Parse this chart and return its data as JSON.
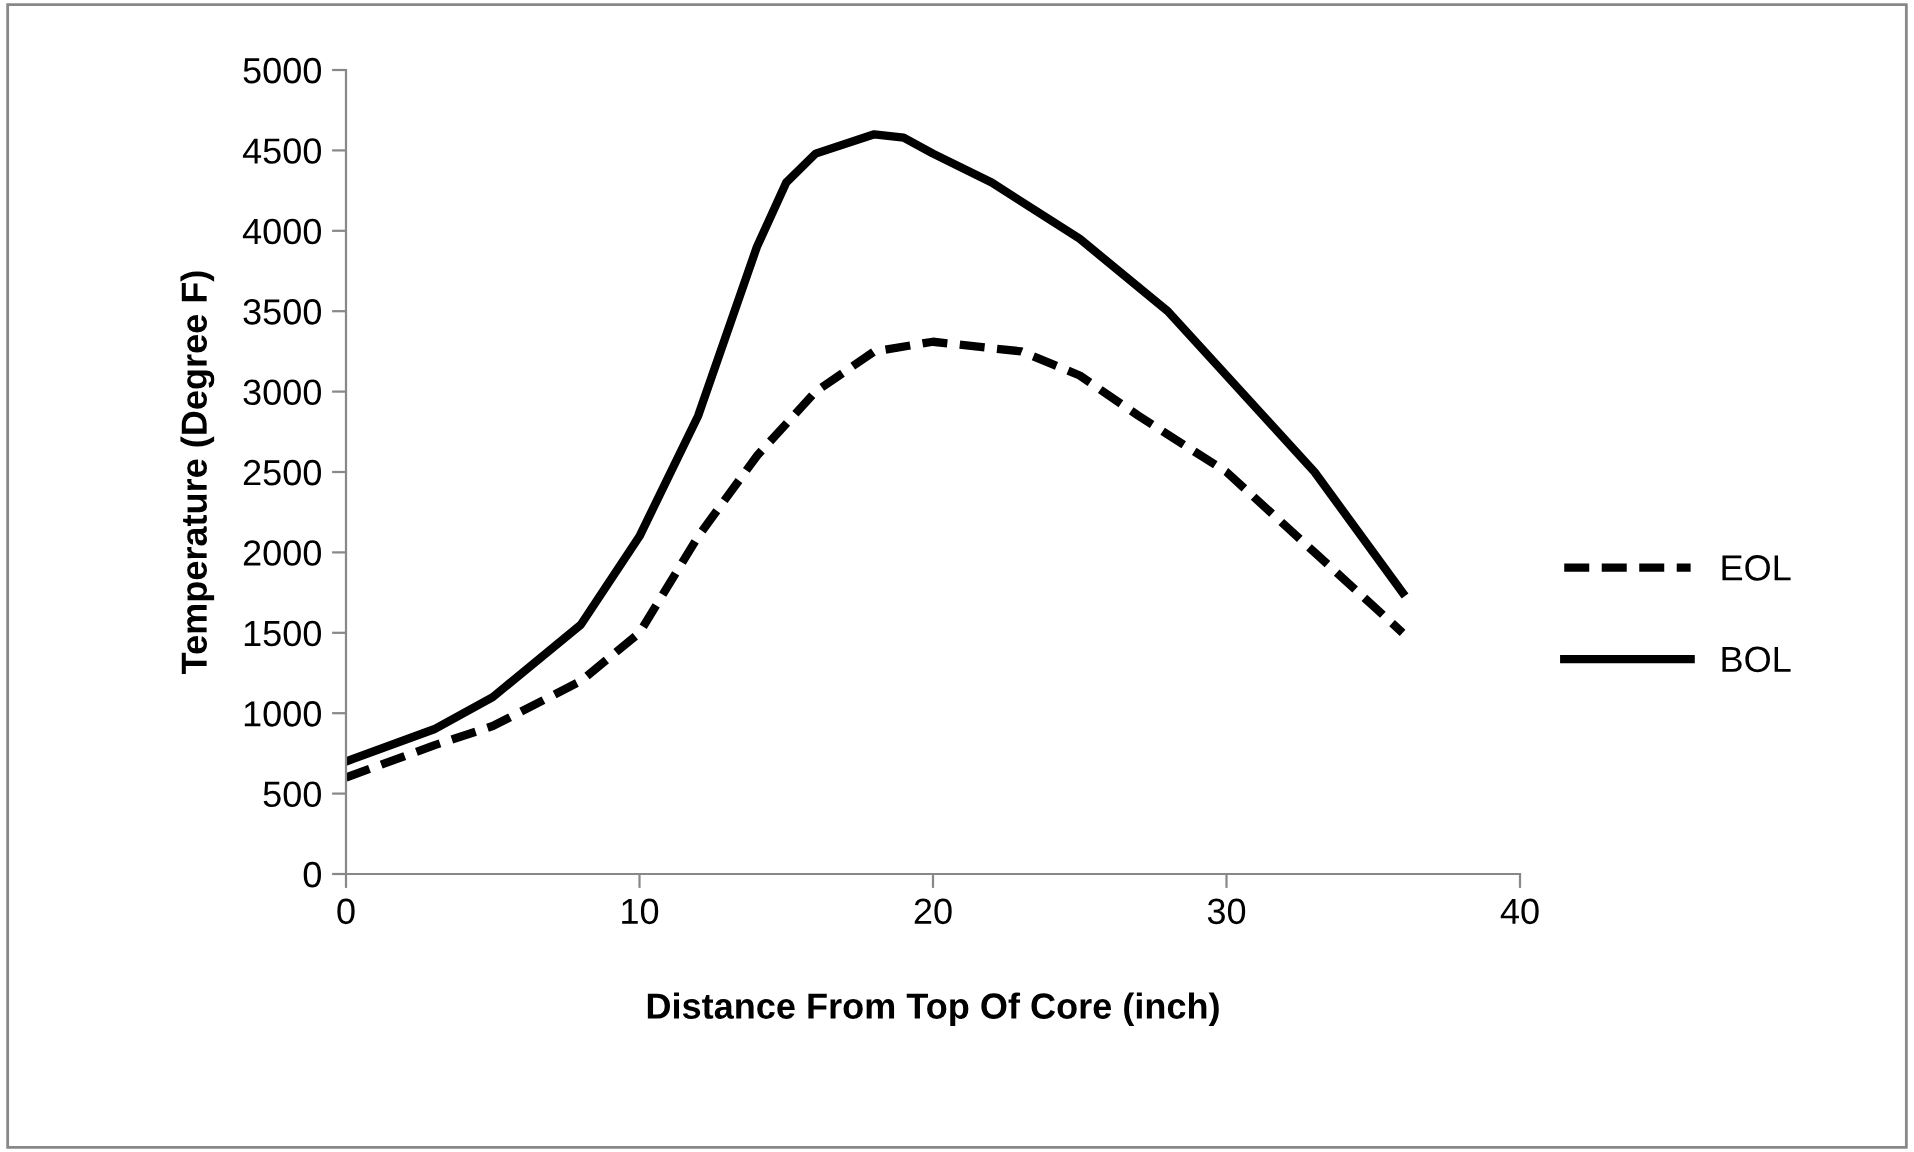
{
  "chart_data": {
    "type": "line",
    "xlabel": "Distance From Top Of Core (inch)",
    "ylabel": "Temperature (Degree F)",
    "xlim": [
      0,
      40
    ],
    "xticks": [
      0,
      10,
      20,
      30,
      40
    ],
    "ylim": [
      0,
      5000
    ],
    "yticks": [
      0,
      500,
      1000,
      1500,
      2000,
      2500,
      3000,
      3500,
      4000,
      4500,
      5000
    ],
    "grid": false,
    "legend": "right",
    "marker": "none",
    "series": [
      {
        "name": "EOL",
        "color": "#000000",
        "line_style": "dashed",
        "x": [
          0,
          3,
          5,
          8,
          10,
          12,
          14,
          16,
          18,
          20,
          23,
          25,
          27,
          30,
          33,
          36
        ],
        "values": [
          600,
          800,
          920,
          1200,
          1500,
          2100,
          2600,
          3000,
          3250,
          3310,
          3250,
          3100,
          2850,
          2500,
          2000,
          1500
        ]
      },
      {
        "name": "BOL",
        "color": "#000000",
        "line_style": "solid",
        "x": [
          0,
          3,
          5,
          8,
          10,
          12,
          14,
          15,
          16,
          18,
          19,
          20,
          22,
          25,
          28,
          30,
          33,
          36
        ],
        "values": [
          700,
          900,
          1100,
          1550,
          2100,
          2850,
          3900,
          4300,
          4480,
          4600,
          4580,
          4480,
          4300,
          3950,
          3500,
          3100,
          2500,
          1750
        ]
      }
    ]
  }
}
